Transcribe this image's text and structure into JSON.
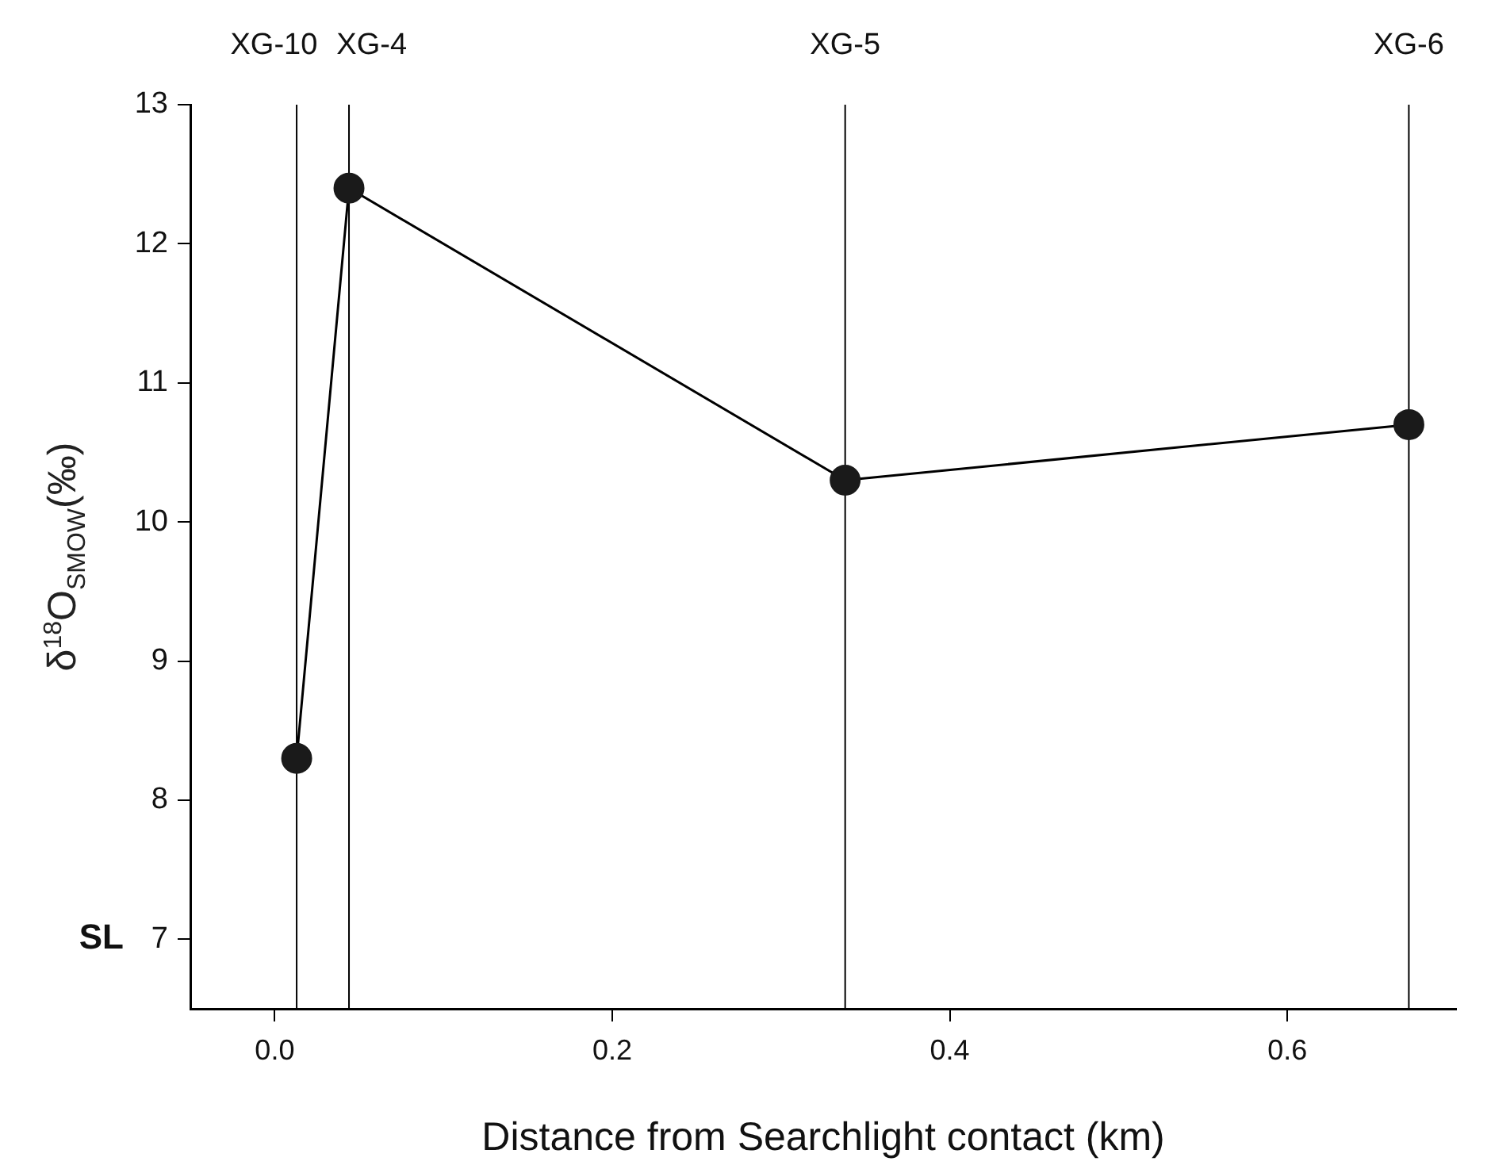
{
  "chart_data": {
    "type": "line",
    "xlabel": "Distance from Searchlight contact (km)",
    "ylabel": "δ$^{18}$O$_{SMOW}$(‰)",
    "x": [
      0.013,
      0.044,
      0.338,
      0.672
    ],
    "series": [
      {
        "color": "#000000",
        "values": [
          8.3,
          12.4,
          10.3,
          10.7
        ]
      }
    ],
    "xlim": [
      -0.05,
      0.7
    ],
    "xticks": [
      {
        "value": 0,
        "label": "0.0"
      },
      0.2,
      0.4,
      0.6
    ],
    "ylim": [
      6.5,
      13
    ],
    "yticks": [
      7,
      8,
      9,
      10,
      11,
      12,
      13
    ],
    "ref_lines": [
      {
        "axis": "x",
        "value": 0.013,
        "label": "XG-10",
        "color": "#000000"
      },
      {
        "axis": "x",
        "value": 0.044,
        "label": "XG-4",
        "color": "#000000"
      },
      {
        "axis": "x",
        "value": 0.338,
        "label": "XG-5",
        "color": "#000000"
      },
      {
        "axis": "x",
        "value": 0.672,
        "label": "XG-6",
        "color": "#000000"
      }
    ],
    "annotations": [
      "SL"
    ],
    "grid": false,
    "legend": false,
    "marker": "circle",
    "line_style": "solid"
  }
}
